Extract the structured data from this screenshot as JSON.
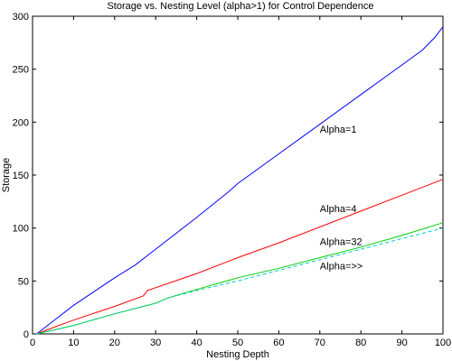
{
  "chart_data": {
    "type": "line",
    "title": "Storage vs. Nesting Level (alpha>1) for Control Dependence",
    "xlabel": "Nesting Depth",
    "ylabel": "Storage",
    "xlim": [
      0,
      100
    ],
    "ylim": [
      0,
      300
    ],
    "xticks": [
      0,
      10,
      20,
      30,
      40,
      50,
      60,
      70,
      80,
      90,
      100
    ],
    "yticks": [
      0,
      50,
      100,
      150,
      200,
      250,
      300
    ],
    "grid": false,
    "legend": "none",
    "series": [
      {
        "name": "Alpha=1",
        "color": "#0000ff",
        "dash": "solid",
        "x": [
          1,
          5,
          10,
          20,
          25,
          30,
          40,
          48,
          50,
          60,
          70,
          80,
          90,
          95,
          98,
          100
        ],
        "y": [
          0,
          12,
          27,
          53,
          65,
          80,
          110,
          135,
          142,
          170,
          198,
          226,
          254,
          268,
          280,
          290
        ]
      },
      {
        "name": "Alpha=4",
        "color": "#ff0000",
        "dash": "solid",
        "x": [
          1,
          5,
          10,
          20,
          27,
          28,
          40,
          50,
          60,
          70,
          80,
          90,
          100
        ],
        "y": [
          0,
          6,
          13,
          26,
          36,
          41,
          57,
          72,
          86,
          101,
          116,
          131,
          146
        ]
      },
      {
        "name": "Alpha=32",
        "color": "#00cc00",
        "dash": "solid",
        "x": [
          1,
          10,
          20,
          30,
          33,
          40,
          50,
          60,
          70,
          80,
          90,
          100
        ],
        "y": [
          0,
          8,
          19,
          29,
          34,
          42,
          53,
          62,
          72,
          82,
          93,
          105
        ]
      },
      {
        "name": "Alpha=>>",
        "color": "#00cccc",
        "dash": "dashed",
        "x": [
          1,
          10,
          20,
          30,
          33,
          40,
          50,
          60,
          70,
          80,
          90,
          100
        ],
        "y": [
          0,
          8,
          19,
          29,
          34,
          41,
          50,
          60,
          70,
          80,
          90,
          100
        ]
      }
    ],
    "annotations": [
      {
        "text": "Alpha=1",
        "x": 70,
        "y": 190
      },
      {
        "text": "Alpha=4",
        "x": 70,
        "y": 115
      },
      {
        "text": "Alpha=32",
        "x": 70,
        "y": 84
      },
      {
        "text": "Alpha=>>",
        "x": 70,
        "y": 61
      }
    ]
  }
}
